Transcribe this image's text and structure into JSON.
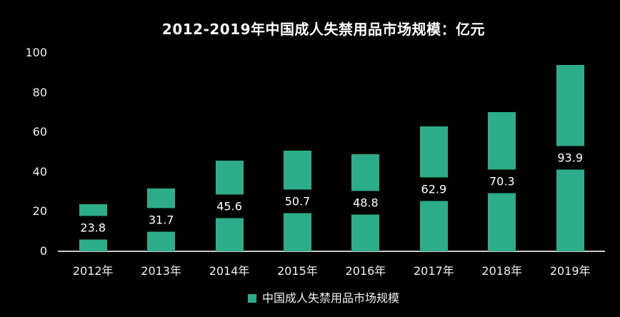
{
  "title": "2012-2019年中国成人失禁用品市场规模：亿元",
  "colors": {
    "background": "#000000",
    "bar": "#2CAC88",
    "text": "#F0F0F0",
    "title_text": "#FFFFFF",
    "value_label_text": "#FFFFFF",
    "value_label_background": "#000000",
    "axis_line": "#C9C9C9"
  },
  "legend": {
    "label": "中国成人失禁用品市场规模",
    "marker": "square-icon",
    "marker_color": "#2CAC88"
  },
  "chart_data": {
    "type": "bar",
    "title": "2012-2019年中国成人失禁用品市场规模：亿元",
    "categories": [
      "2012年",
      "2013年",
      "2014年",
      "2015年",
      "2016年",
      "2017年",
      "2018年",
      "2019年"
    ],
    "series": [
      {
        "name": "中国成人失禁用品市场规模",
        "values": [
          23.8,
          31.7,
          45.6,
          50.7,
          48.8,
          62.9,
          70.3,
          93.9
        ],
        "color": "#2CAC88"
      }
    ],
    "data_labels": [
      "23.8",
      "31.7",
      "45.6",
      "50.7",
      "48.8",
      "62.9",
      "70.3",
      "93.9"
    ],
    "data_label_position": "inside-center",
    "xlabel": "",
    "ylabel": "",
    "unit": "亿元",
    "y_ticks": [
      0,
      20,
      40,
      60,
      80,
      100
    ],
    "ylim": [
      0,
      100
    ],
    "grid": false,
    "legend_position": "bottom",
    "background": "#000000"
  }
}
